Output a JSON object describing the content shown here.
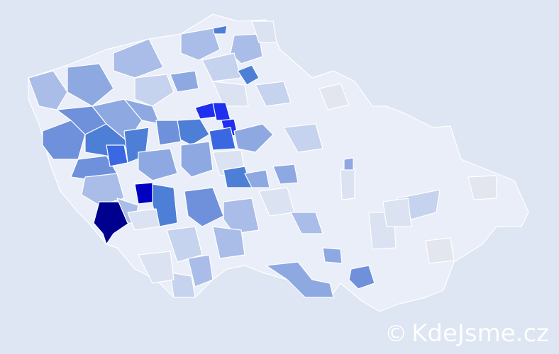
{
  "map": {
    "title": "",
    "colors": {
      "background": "#dde6f2",
      "outline": "#ffffff",
      "scale": [
        "#eef1f8",
        "#dbe2f1",
        "#c6d3ee",
        "#a9bde8",
        "#8ea8e2",
        "#6f90da",
        "#4e7fd6",
        "#3a67e2",
        "#1f2ff0",
        "#0000c0",
        "#00008f"
      ]
    },
    "legend": "none"
  },
  "watermark": {
    "symbol": "©",
    "text": "KdeJsme.cz"
  }
}
